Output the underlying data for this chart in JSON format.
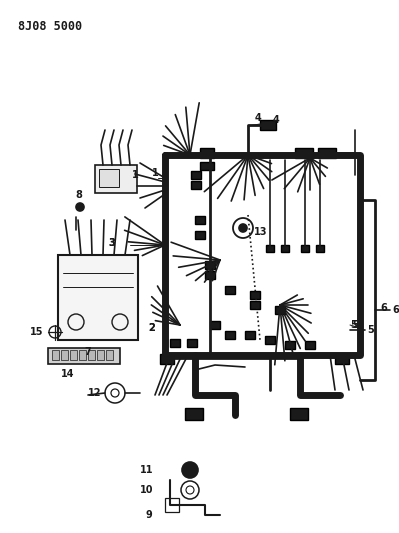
{
  "title": "8J08 5000",
  "bg_color": "#ffffff",
  "line_color": "#1a1a1a",
  "fig_width": 3.99,
  "fig_height": 5.33,
  "dpi": 100
}
